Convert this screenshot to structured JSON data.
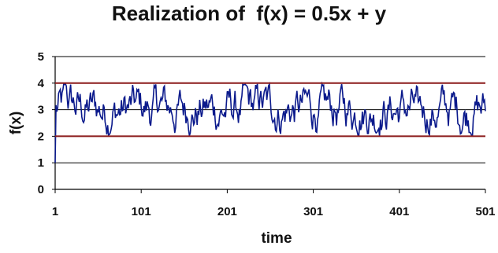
{
  "chart_data": {
    "type": "line",
    "title": "Realization of  f(x) = 0.5x + y",
    "xlabel": "time",
    "ylabel": "f(x)",
    "xlim": [
      1,
      501
    ],
    "ylim": [
      0,
      5
    ],
    "x_ticks": [
      "1",
      "101",
      "201",
      "301",
      "401",
      "501"
    ],
    "y_ticks": [
      "0",
      "1",
      "2",
      "3",
      "4",
      "5"
    ],
    "grid": "horizontal",
    "legend": "none",
    "reference_lines": [
      {
        "y": 2,
        "color": "#8b1a1a"
      },
      {
        "y": 4,
        "color": "#8b1a1a"
      }
    ],
    "series": [
      {
        "color": "#0b1a8c",
        "description_of_shape": "starts at about 1.0 at t=1, jumps to about 3, then oscillates rapidly between roughly 2 and 4 through t=501",
        "x": [
          1,
          501
        ],
        "y_start": 1.0,
        "y_min": 2.0,
        "y_max": 4.0
      }
    ]
  },
  "colors": {
    "series": "#0b1a8c",
    "bounds": "#8b1a1a",
    "grid": "#000000"
  }
}
